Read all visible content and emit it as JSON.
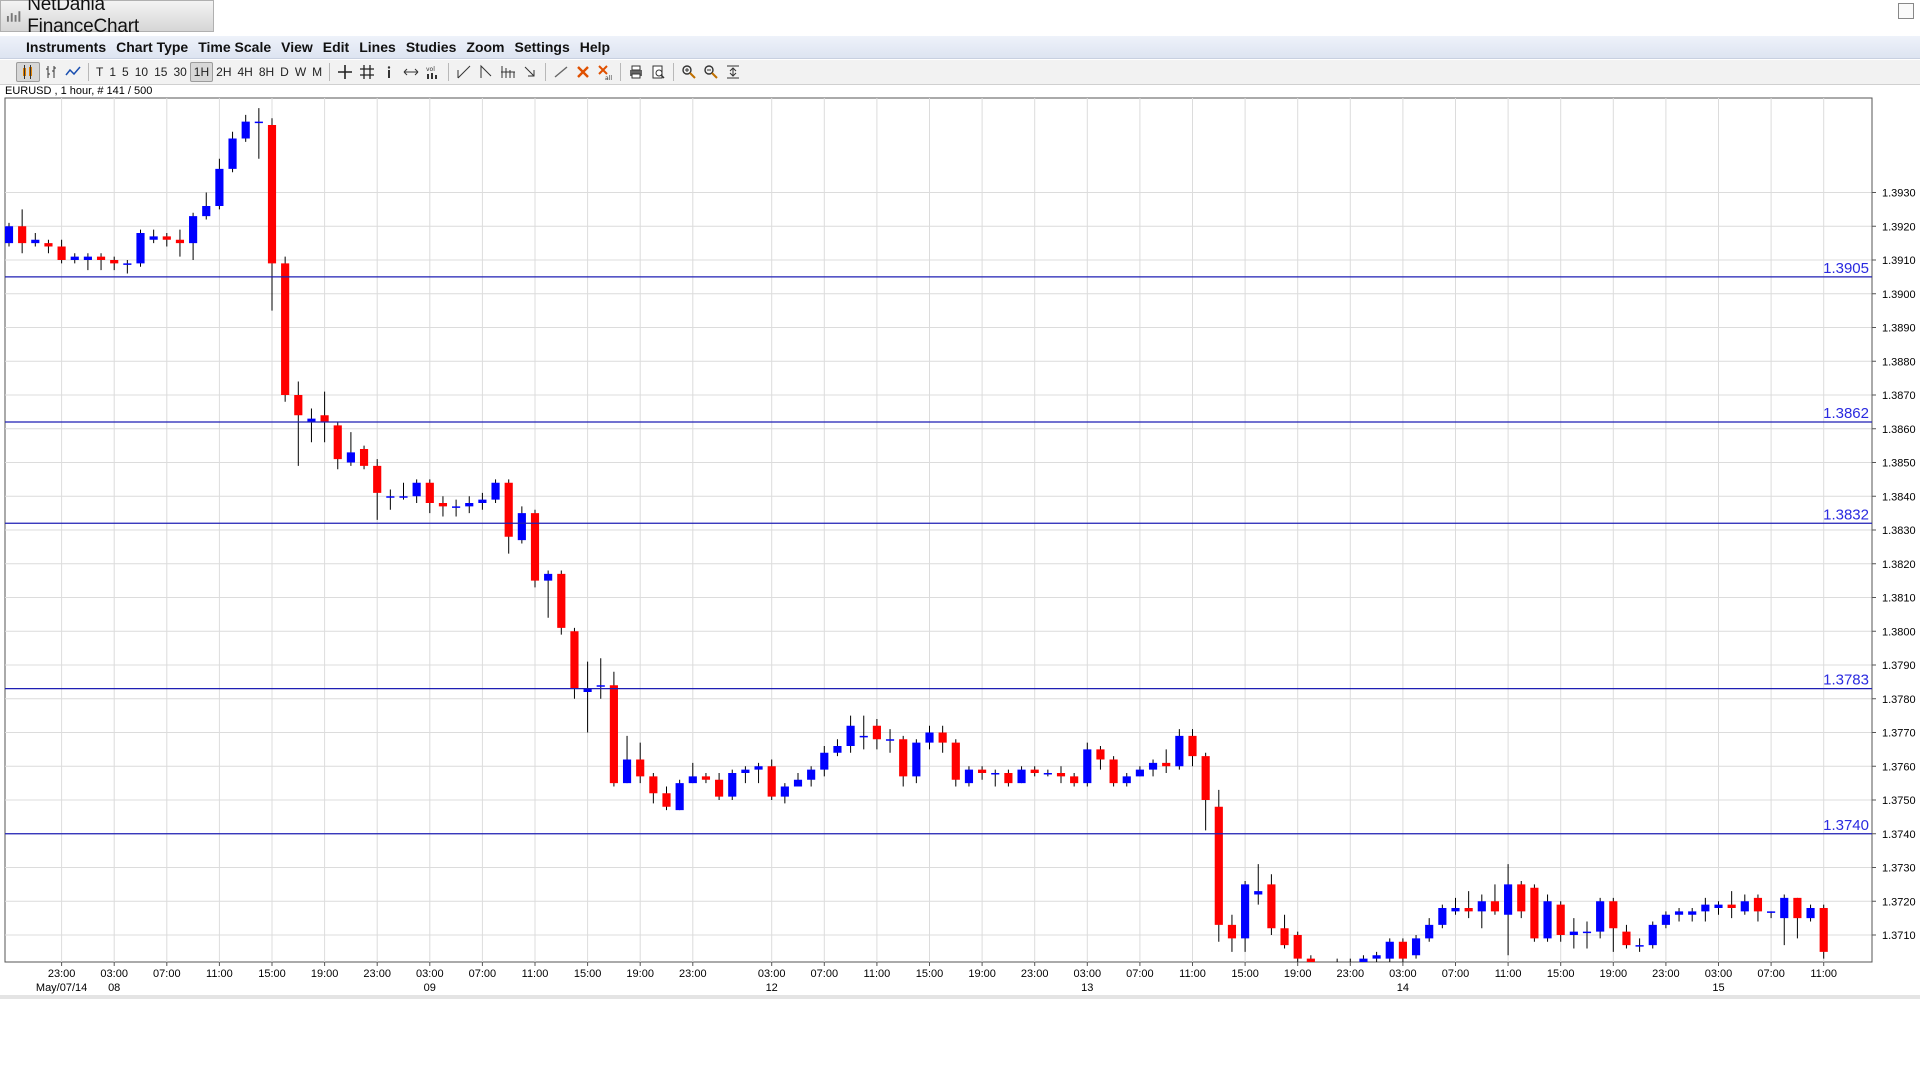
{
  "app": {
    "title": "NetDania FinanceChart"
  },
  "menu": [
    "Instruments",
    "Chart Type",
    "Time Scale",
    "View",
    "Edit",
    "Lines",
    "Studies",
    "Zoom",
    "Settings",
    "Help"
  ],
  "toolbar": {
    "periods": [
      "T",
      "1",
      "5",
      "10",
      "15",
      "30",
      "1H",
      "2H",
      "4H",
      "8H",
      "D",
      "W",
      "M"
    ],
    "active_period": "1H",
    "icons": [
      "candlestick-icon",
      "ohlc-bars-icon",
      "line-chart-icon",
      "crosshair-icon",
      "grid-icon",
      "info-icon",
      "pan-icon",
      "volume-icon",
      "trendline-icon",
      "fib-icon",
      "fan-icon",
      "arrow-icon",
      "draw-line-icon",
      "delete-icon",
      "delete-all-icon",
      "print-icon",
      "print-preview-icon",
      "zoom-in-icon",
      "zoom-out-icon",
      "fit-icon",
      "settings-icon"
    ]
  },
  "chart_data": {
    "type": "candlestick",
    "instrument_label": "EURUSD , 1 hour, # 141 / 500",
    "colors": {
      "up": "#0000ff",
      "down": "#ff0000",
      "wick": "#000000",
      "level_line": "#1f1fb4",
      "grid": "#dcdcdc"
    },
    "ylim": [
      1.3702,
      1.3958
    ],
    "y_ticks": [
      "1.3710",
      "1.3720",
      "1.3730",
      "1.3740",
      "1.3750",
      "1.3760",
      "1.3770",
      "1.3780",
      "1.3790",
      "1.3800",
      "1.3810",
      "1.3820",
      "1.3830",
      "1.3840",
      "1.3850",
      "1.3860",
      "1.3870",
      "1.3880",
      "1.3890",
      "1.3900",
      "1.3910",
      "1.3920",
      "1.3930"
    ],
    "levels": [
      {
        "value": 1.3905,
        "label": "1.3905"
      },
      {
        "value": 1.3862,
        "label": "1.3862"
      },
      {
        "value": 1.3832,
        "label": "1.3832"
      },
      {
        "value": 1.3783,
        "label": "1.3783"
      },
      {
        "value": 1.374,
        "label": "1.3740"
      }
    ],
    "x_ticks": [
      {
        "bar": 4,
        "label": "23:00",
        "date": "May/07/14"
      },
      {
        "bar": 8,
        "label": "03:00",
        "date": "08"
      },
      {
        "bar": 12,
        "label": "07:00",
        "date": ""
      },
      {
        "bar": 16,
        "label": "11:00",
        "date": ""
      },
      {
        "bar": 20,
        "label": "15:00",
        "date": ""
      },
      {
        "bar": 24,
        "label": "19:00",
        "date": ""
      },
      {
        "bar": 28,
        "label": "23:00",
        "date": ""
      },
      {
        "bar": 32,
        "label": "03:00",
        "date": "09"
      },
      {
        "bar": 36,
        "label": "07:00",
        "date": ""
      },
      {
        "bar": 40,
        "label": "11:00",
        "date": ""
      },
      {
        "bar": 44,
        "label": "15:00",
        "date": ""
      },
      {
        "bar": 48,
        "label": "19:00",
        "date": ""
      },
      {
        "bar": 52,
        "label": "23:00",
        "date": ""
      },
      {
        "bar": 58,
        "label": "03:00",
        "date": "12"
      },
      {
        "bar": 62,
        "label": "07:00",
        "date": ""
      },
      {
        "bar": 66,
        "label": "11:00",
        "date": ""
      },
      {
        "bar": 70,
        "label": "15:00",
        "date": ""
      },
      {
        "bar": 74,
        "label": "19:00",
        "date": ""
      },
      {
        "bar": 78,
        "label": "23:00",
        "date": ""
      },
      {
        "bar": 82,
        "label": "03:00",
        "date": "13"
      },
      {
        "bar": 86,
        "label": "07:00",
        "date": ""
      },
      {
        "bar": 90,
        "label": "11:00",
        "date": ""
      },
      {
        "bar": 94,
        "label": "15:00",
        "date": ""
      },
      {
        "bar": 98,
        "label": "19:00",
        "date": ""
      },
      {
        "bar": 102,
        "label": "23:00",
        "date": ""
      },
      {
        "bar": 106,
        "label": "03:00",
        "date": "14"
      },
      {
        "bar": 110,
        "label": "07:00",
        "date": ""
      },
      {
        "bar": 114,
        "label": "11:00",
        "date": ""
      },
      {
        "bar": 118,
        "label": "15:00",
        "date": ""
      },
      {
        "bar": 122,
        "label": "19:00",
        "date": ""
      },
      {
        "bar": 126,
        "label": "23:00",
        "date": ""
      },
      {
        "bar": 130,
        "label": "03:00",
        "date": "15"
      },
      {
        "bar": 134,
        "label": "07:00",
        "date": ""
      },
      {
        "bar": 138,
        "label": "11:00",
        "date": ""
      }
    ],
    "candles": [
      [
        1.3915,
        1.392,
        1.3914,
        1.3921
      ],
      [
        1.392,
        1.3915,
        1.3912,
        1.3925
      ],
      [
        1.3915,
        1.3916,
        1.3914,
        1.3918
      ],
      [
        1.3915,
        1.3914,
        1.3912,
        1.3916
      ],
      [
        1.3914,
        1.391,
        1.3909,
        1.3916
      ],
      [
        1.391,
        1.3911,
        1.3909,
        1.3912
      ],
      [
        1.391,
        1.3911,
        1.3907,
        1.3912
      ],
      [
        1.3911,
        1.391,
        1.3907,
        1.3912
      ],
      [
        1.391,
        1.3909,
        1.3907,
        1.3911
      ],
      [
        1.3909,
        1.3909,
        1.3906,
        1.391
      ],
      [
        1.3909,
        1.3918,
        1.3908,
        1.3919
      ],
      [
        1.3916,
        1.3917,
        1.3915,
        1.3919
      ],
      [
        1.3917,
        1.3916,
        1.3914,
        1.3918
      ],
      [
        1.3916,
        1.3915,
        1.3911,
        1.3919
      ],
      [
        1.3915,
        1.3923,
        1.391,
        1.3924
      ],
      [
        1.3923,
        1.3926,
        1.3922,
        1.393
      ],
      [
        1.3926,
        1.3937,
        1.3925,
        1.394
      ],
      [
        1.3937,
        1.3946,
        1.3936,
        1.3948
      ],
      [
        1.3946,
        1.3951,
        1.3945,
        1.3953
      ],
      [
        1.3951,
        1.3951,
        1.394,
        1.3955
      ],
      [
        1.395,
        1.3909,
        1.3895,
        1.3952
      ],
      [
        1.3909,
        1.387,
        1.3868,
        1.3911
      ],
      [
        1.387,
        1.3864,
        1.3849,
        1.3874
      ],
      [
        1.3862,
        1.3863,
        1.3856,
        1.3866
      ],
      [
        1.3864,
        1.3862,
        1.3856,
        1.3871
      ],
      [
        1.3861,
        1.3851,
        1.3848,
        1.3862
      ],
      [
        1.385,
        1.3853,
        1.3849,
        1.3859
      ],
      [
        1.3854,
        1.3849,
        1.3848,
        1.3855
      ],
      [
        1.3849,
        1.3841,
        1.3833,
        1.3851
      ],
      [
        1.384,
        1.384,
        1.3836,
        1.3842
      ],
      [
        1.384,
        1.384,
        1.3839,
        1.3844
      ],
      [
        1.384,
        1.3844,
        1.3838,
        1.3845
      ],
      [
        1.3844,
        1.3838,
        1.3835,
        1.3845
      ],
      [
        1.3838,
        1.3837,
        1.3834,
        1.384
      ],
      [
        1.3837,
        1.3837,
        1.3834,
        1.3839
      ],
      [
        1.3837,
        1.3838,
        1.3835,
        1.384
      ],
      [
        1.3838,
        1.3839,
        1.3836,
        1.3841
      ],
      [
        1.3839,
        1.3844,
        1.3838,
        1.3845
      ],
      [
        1.3844,
        1.3828,
        1.3823,
        1.3845
      ],
      [
        1.3827,
        1.3835,
        1.3826,
        1.3837
      ],
      [
        1.3835,
        1.3815,
        1.3813,
        1.3836
      ],
      [
        1.3815,
        1.3817,
        1.3804,
        1.3818
      ],
      [
        1.3817,
        1.3801,
        1.3799,
        1.3818
      ],
      [
        1.38,
        1.3783,
        1.378,
        1.3801
      ],
      [
        1.3782,
        1.3783,
        1.377,
        1.3791
      ],
      [
        1.3784,
        1.3784,
        1.378,
        1.3792
      ],
      [
        1.3784,
        1.3755,
        1.3754,
        1.3788
      ],
      [
        1.3755,
        1.3762,
        1.3755,
        1.3769
      ],
      [
        1.3762,
        1.3757,
        1.3755,
        1.3767
      ],
      [
        1.3757,
        1.3752,
        1.3749,
        1.3758
      ],
      [
        1.3752,
        1.3748,
        1.3747,
        1.3754
      ],
      [
        1.3747,
        1.3755,
        1.3747,
        1.3756
      ],
      [
        1.3755,
        1.3757,
        1.3755,
        1.3761
      ],
      [
        1.3757,
        1.3756,
        1.3755,
        1.3758
      ],
      [
        1.3756,
        1.3751,
        1.375,
        1.3758
      ],
      [
        1.3751,
        1.3758,
        1.375,
        1.3759
      ],
      [
        1.3758,
        1.3759,
        1.3755,
        1.376
      ],
      [
        1.3759,
        1.376,
        1.3755,
        1.3761
      ],
      [
        1.376,
        1.3751,
        1.375,
        1.3762
      ],
      [
        1.3751,
        1.3754,
        1.3749,
        1.3755
      ],
      [
        1.3754,
        1.3756,
        1.3754,
        1.3758
      ],
      [
        1.3756,
        1.3759,
        1.3754,
        1.376
      ],
      [
        1.3759,
        1.3764,
        1.3757,
        1.3766
      ],
      [
        1.3764,
        1.3766,
        1.3763,
        1.3768
      ],
      [
        1.3766,
        1.3772,
        1.3764,
        1.3775
      ],
      [
        1.3769,
        1.3769,
        1.3765,
        1.3775
      ],
      [
        1.3772,
        1.3768,
        1.3765,
        1.3774
      ],
      [
        1.3768,
        1.3768,
        1.3764,
        1.3771
      ],
      [
        1.3768,
        1.3757,
        1.3754,
        1.3769
      ],
      [
        1.3757,
        1.3767,
        1.3755,
        1.3768
      ],
      [
        1.3767,
        1.377,
        1.3765,
        1.3772
      ],
      [
        1.377,
        1.3767,
        1.3764,
        1.3772
      ],
      [
        1.3767,
        1.3756,
        1.3754,
        1.3768
      ],
      [
        1.3755,
        1.3759,
        1.3754,
        1.376
      ],
      [
        1.3759,
        1.3758,
        1.3756,
        1.376
      ],
      [
        1.3758,
        1.3758,
        1.3754,
        1.3759
      ],
      [
        1.3758,
        1.3755,
        1.3754,
        1.3759
      ],
      [
        1.3755,
        1.3759,
        1.3755,
        1.376
      ],
      [
        1.3759,
        1.3758,
        1.3757,
        1.376
      ],
      [
        1.3758,
        1.3758,
        1.3757,
        1.3759
      ],
      [
        1.3758,
        1.3757,
        1.3755,
        1.376
      ],
      [
        1.3757,
        1.3755,
        1.3754,
        1.3758
      ],
      [
        1.3755,
        1.3765,
        1.3754,
        1.3767
      ],
      [
        1.3765,
        1.3762,
        1.3759,
        1.3766
      ],
      [
        1.3762,
        1.3755,
        1.3754,
        1.3763
      ],
      [
        1.3755,
        1.3757,
        1.3754,
        1.3758
      ],
      [
        1.3757,
        1.3759,
        1.3757,
        1.376
      ],
      [
        1.3759,
        1.3761,
        1.3757,
        1.3762
      ],
      [
        1.3761,
        1.376,
        1.3758,
        1.3765
      ],
      [
        1.376,
        1.3769,
        1.3759,
        1.3771
      ],
      [
        1.3769,
        1.3763,
        1.376,
        1.3771
      ],
      [
        1.3763,
        1.375,
        1.3741,
        1.3764
      ],
      [
        1.3748,
        1.3713,
        1.3708,
        1.3753
      ],
      [
        1.3713,
        1.3709,
        1.3705,
        1.3716
      ],
      [
        1.3709,
        1.3725,
        1.3705,
        1.3726
      ],
      [
        1.3722,
        1.3723,
        1.3719,
        1.3731
      ],
      [
        1.3725,
        1.3712,
        1.371,
        1.3728
      ],
      [
        1.3712,
        1.3707,
        1.3706,
        1.3716
      ],
      [
        1.371,
        1.3703,
        1.37,
        1.3711
      ],
      [
        1.3703,
        1.37,
        1.3695,
        1.3704
      ],
      [
        1.37,
        1.3701,
        1.3698,
        1.3702
      ],
      [
        1.3701,
        1.3699,
        1.3697,
        1.3703
      ],
      [
        1.3699,
        1.3702,
        1.3697,
        1.3703
      ],
      [
        1.3702,
        1.3703,
        1.3701,
        1.3704
      ],
      [
        1.3703,
        1.3704,
        1.3702,
        1.3705
      ],
      [
        1.3703,
        1.3708,
        1.3702,
        1.3709
      ],
      [
        1.3708,
        1.3703,
        1.3702,
        1.3709
      ],
      [
        1.3704,
        1.3709,
        1.3703,
        1.371
      ],
      [
        1.3709,
        1.3713,
        1.3708,
        1.3715
      ],
      [
        1.3713,
        1.3718,
        1.3712,
        1.3719
      ],
      [
        1.3717,
        1.3718,
        1.3716,
        1.3721
      ],
      [
        1.3718,
        1.3717,
        1.3715,
        1.3723
      ],
      [
        1.3717,
        1.372,
        1.3712,
        1.3722
      ],
      [
        1.372,
        1.3717,
        1.3716,
        1.3725
      ],
      [
        1.3716,
        1.3725,
        1.3704,
        1.3731
      ],
      [
        1.3725,
        1.3717,
        1.3715,
        1.3726
      ],
      [
        1.3724,
        1.3709,
        1.3708,
        1.3725
      ],
      [
        1.3709,
        1.372,
        1.3708,
        1.3722
      ],
      [
        1.3719,
        1.371,
        1.3708,
        1.372
      ],
      [
        1.371,
        1.3711,
        1.3706,
        1.3715
      ],
      [
        1.3711,
        1.3711,
        1.3706,
        1.3714
      ],
      [
        1.3711,
        1.372,
        1.3709,
        1.3721
      ],
      [
        1.372,
        1.3712,
        1.3705,
        1.3721
      ],
      [
        1.3711,
        1.3707,
        1.3706,
        1.3713
      ],
      [
        1.3707,
        1.3707,
        1.3705,
        1.3709
      ],
      [
        1.3707,
        1.3713,
        1.3706,
        1.3714
      ],
      [
        1.3713,
        1.3716,
        1.3712,
        1.3717
      ],
      [
        1.3716,
        1.3717,
        1.3714,
        1.3718
      ],
      [
        1.3716,
        1.3717,
        1.3714,
        1.3718
      ],
      [
        1.3717,
        1.3719,
        1.3714,
        1.3721
      ],
      [
        1.3718,
        1.3719,
        1.3716,
        1.372
      ],
      [
        1.3719,
        1.3718,
        1.3715,
        1.3723
      ],
      [
        1.3717,
        1.372,
        1.3716,
        1.3722
      ],
      [
        1.3721,
        1.3717,
        1.3714,
        1.3722
      ],
      [
        1.3717,
        1.3717,
        1.3715,
        1.3717
      ],
      [
        1.3715,
        1.3721,
        1.3707,
        1.3722
      ],
      [
        1.3721,
        1.3715,
        1.3709,
        1.3721
      ],
      [
        1.3715,
        1.3718,
        1.3714,
        1.3719
      ],
      [
        1.3718,
        1.3705,
        1.3703,
        1.3719
      ]
    ]
  }
}
